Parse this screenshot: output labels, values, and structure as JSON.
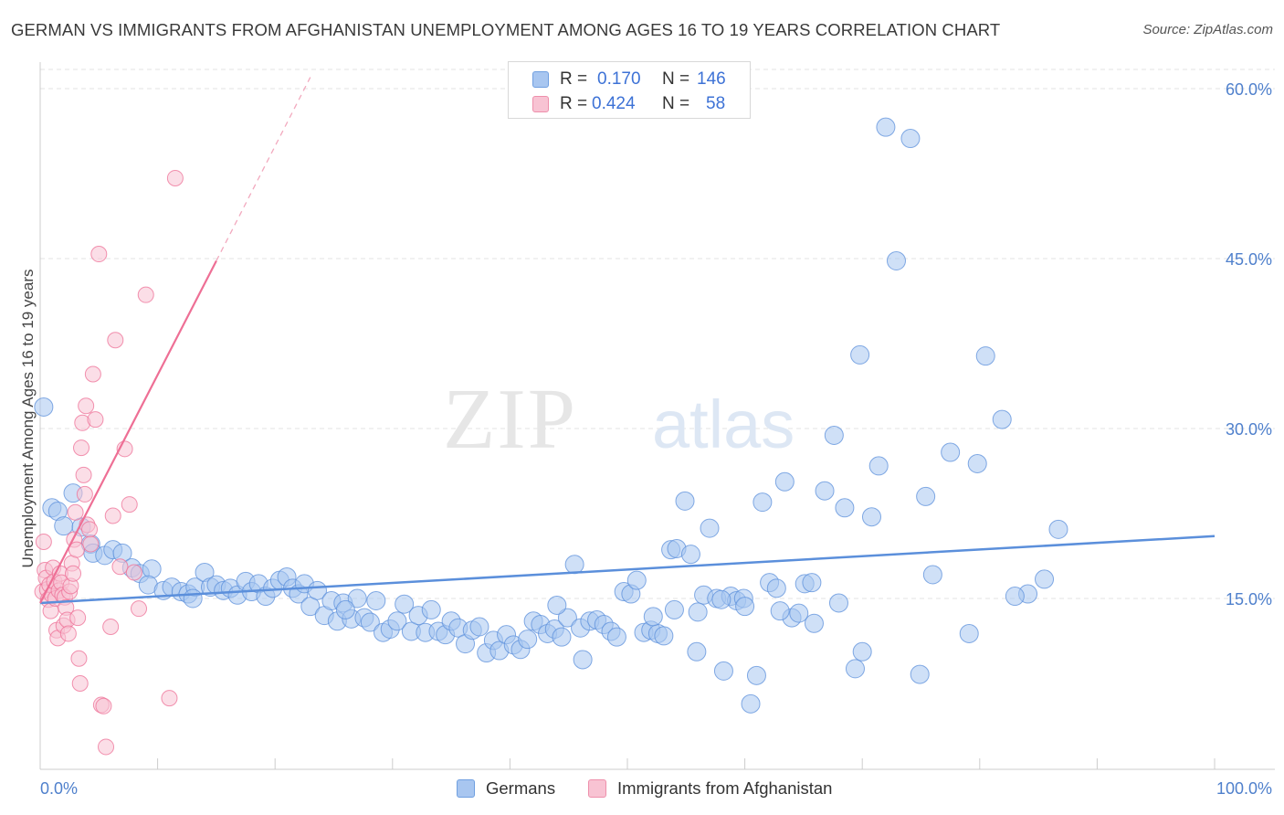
{
  "title": "GERMAN VS IMMIGRANTS FROM AFGHANISTAN UNEMPLOYMENT AMONG AGES 16 TO 19 YEARS CORRELATION CHART",
  "source": "Source: ZipAtlas.com",
  "watermark": {
    "zip": "ZIP",
    "atlas": "atlas"
  },
  "legend_top": {
    "rows": [
      {
        "r_label": "R =",
        "r_value": "0.170",
        "n_label": "N =",
        "n_value": "146",
        "color": "#a8c6f0",
        "border": "#6f9fe0"
      },
      {
        "r_label": "R =",
        "r_value": "0.424",
        "n_label": "N =",
        "n_value": "58",
        "color": "#f8c3d3",
        "border": "#ee8fab"
      }
    ]
  },
  "legend_bottom": [
    {
      "label": "Germans",
      "color": "#a8c6f0",
      "border": "#6f9fe0"
    },
    {
      "label": "Immigrants from Afghanistan",
      "color": "#f8c3d3",
      "border": "#ee8fab"
    }
  ],
  "chart_data": {
    "type": "scatter",
    "ylabel": "Unemployment Among Ages 16 to 19 years",
    "xlim": [
      0,
      100
    ],
    "ylim": [
      0,
      62
    ],
    "x_tick_labels": [
      "0.0%",
      "100.0%"
    ],
    "y_ticks": [
      15,
      30,
      45,
      60
    ],
    "y_tick_labels": [
      "15.0%",
      "30.0%",
      "45.0%",
      "60.0%"
    ],
    "grid": true,
    "series": [
      {
        "name": "Germans",
        "color": "#5b8fdb",
        "fill": "#a8c6f0",
        "trend": {
          "x0": 0,
          "y0": 14.6,
          "x1": 100,
          "y1": 20.5
        },
        "points": [
          [
            0.3,
            31.9
          ],
          [
            1.0,
            23.0
          ],
          [
            1.5,
            22.7
          ],
          [
            2.0,
            21.4
          ],
          [
            2.8,
            24.3
          ],
          [
            3.5,
            21.3
          ],
          [
            4.3,
            19.8
          ],
          [
            4.5,
            19.0
          ],
          [
            5.5,
            18.8
          ],
          [
            6.2,
            19.3
          ],
          [
            7.0,
            19.0
          ],
          [
            7.8,
            17.7
          ],
          [
            8.5,
            17.2
          ],
          [
            9.5,
            17.6
          ],
          [
            9.2,
            16.2
          ],
          [
            10.5,
            15.7
          ],
          [
            11.2,
            16.0
          ],
          [
            12.0,
            15.6
          ],
          [
            12.6,
            15.4
          ],
          [
            13.2,
            16.0
          ],
          [
            13.0,
            15.0
          ],
          [
            14.0,
            17.3
          ],
          [
            14.5,
            16.0
          ],
          [
            15.0,
            16.2
          ],
          [
            15.6,
            15.7
          ],
          [
            16.2,
            15.9
          ],
          [
            16.8,
            15.3
          ],
          [
            17.5,
            16.5
          ],
          [
            18.0,
            15.6
          ],
          [
            18.6,
            16.3
          ],
          [
            19.2,
            15.2
          ],
          [
            19.8,
            15.9
          ],
          [
            20.4,
            16.6
          ],
          [
            21.0,
            16.9
          ],
          [
            21.5,
            15.9
          ],
          [
            22.0,
            15.4
          ],
          [
            22.5,
            16.3
          ],
          [
            23.0,
            14.3
          ],
          [
            23.6,
            15.7
          ],
          [
            24.2,
            13.5
          ],
          [
            24.8,
            14.8
          ],
          [
            25.3,
            13.0
          ],
          [
            25.8,
            14.6
          ],
          [
            26.5,
            13.2
          ],
          [
            27.0,
            15.0
          ],
          [
            27.6,
            13.3
          ],
          [
            28.1,
            12.9
          ],
          [
            28.6,
            14.8
          ],
          [
            29.2,
            12.0
          ],
          [
            29.8,
            12.3
          ],
          [
            30.4,
            13.0
          ],
          [
            31.0,
            14.5
          ],
          [
            31.6,
            12.1
          ],
          [
            32.2,
            13.5
          ],
          [
            32.8,
            12.0
          ],
          [
            33.3,
            14.0
          ],
          [
            33.9,
            12.1
          ],
          [
            34.5,
            11.8
          ],
          [
            35.0,
            13.0
          ],
          [
            35.6,
            12.4
          ],
          [
            36.2,
            11.0
          ],
          [
            36.8,
            12.2
          ],
          [
            37.4,
            12.5
          ],
          [
            38.0,
            10.2
          ],
          [
            38.6,
            11.3
          ],
          [
            39.1,
            10.4
          ],
          [
            39.7,
            11.8
          ],
          [
            40.3,
            10.9
          ],
          [
            40.9,
            10.5
          ],
          [
            41.5,
            11.4
          ],
          [
            42.0,
            13.0
          ],
          [
            42.6,
            12.7
          ],
          [
            43.2,
            11.9
          ],
          [
            43.8,
            12.3
          ],
          [
            44.4,
            11.6
          ],
          [
            44.9,
            13.3
          ],
          [
            45.5,
            18.0
          ],
          [
            46.0,
            12.4
          ],
          [
            46.2,
            9.6
          ],
          [
            46.8,
            13.0
          ],
          [
            47.4,
            13.1
          ],
          [
            48.0,
            12.7
          ],
          [
            48.6,
            12.1
          ],
          [
            49.1,
            11.6
          ],
          [
            49.7,
            15.6
          ],
          [
            50.3,
            15.4
          ],
          [
            50.8,
            16.6
          ],
          [
            51.4,
            12.0
          ],
          [
            52.0,
            12.2
          ],
          [
            52.6,
            11.9
          ],
          [
            53.1,
            11.7
          ],
          [
            53.7,
            19.3
          ],
          [
            54.2,
            19.4
          ],
          [
            54.9,
            23.6
          ],
          [
            55.4,
            18.9
          ],
          [
            55.9,
            10.3
          ],
          [
            56.5,
            15.3
          ],
          [
            57.0,
            21.2
          ],
          [
            57.6,
            15.0
          ],
          [
            58.2,
            8.6
          ],
          [
            58.8,
            15.2
          ],
          [
            59.3,
            14.8
          ],
          [
            59.9,
            15.0
          ],
          [
            60.5,
            5.7
          ],
          [
            61.0,
            8.2
          ],
          [
            61.5,
            23.5
          ],
          [
            62.1,
            16.4
          ],
          [
            62.7,
            15.9
          ],
          [
            63.4,
            25.3
          ],
          [
            64.0,
            13.3
          ],
          [
            64.6,
            13.7
          ],
          [
            65.1,
            16.3
          ],
          [
            65.7,
            16.4
          ],
          [
            66.8,
            24.5
          ],
          [
            67.6,
            29.4
          ],
          [
            68.5,
            23.0
          ],
          [
            69.4,
            8.8
          ],
          [
            70.0,
            10.3
          ],
          [
            70.8,
            22.2
          ],
          [
            71.4,
            26.7
          ],
          [
            72.0,
            56.6
          ],
          [
            72.9,
            44.8
          ],
          [
            74.1,
            55.6
          ],
          [
            74.9,
            8.3
          ],
          [
            75.4,
            24.0
          ],
          [
            76.0,
            17.1
          ],
          [
            77.5,
            27.9
          ],
          [
            79.1,
            11.9
          ],
          [
            79.8,
            26.9
          ],
          [
            80.5,
            36.4
          ],
          [
            81.9,
            30.8
          ],
          [
            84.1,
            15.4
          ],
          [
            85.5,
            16.7
          ],
          [
            69.8,
            36.5
          ],
          [
            83.0,
            15.2
          ],
          [
            68.0,
            14.6
          ],
          [
            65.9,
            12.8
          ],
          [
            86.7,
            21.1
          ],
          [
            63.0,
            13.9
          ],
          [
            60.0,
            14.3
          ],
          [
            58.0,
            14.9
          ],
          [
            56.0,
            13.8
          ],
          [
            54.0,
            14.0
          ],
          [
            52.2,
            13.4
          ],
          [
            44.0,
            14.4
          ],
          [
            26.0,
            14.0
          ]
        ]
      },
      {
        "name": "Immigrants from Afghanistan",
        "color": "#ee6f95",
        "fill": "#f8c3d3",
        "trend": {
          "x0": 0,
          "y0": 14.6,
          "x1": 15,
          "y1": 44.8
        },
        "trend_dashed": {
          "x0": 15,
          "y0": 44.8,
          "x1": 23,
          "y1": 61
        },
        "points": [
          [
            0.2,
            15.6
          ],
          [
            0.3,
            20.0
          ],
          [
            0.4,
            17.5
          ],
          [
            0.5,
            16.8
          ],
          [
            0.6,
            15.8
          ],
          [
            0.7,
            14.9
          ],
          [
            0.8,
            16.2
          ],
          [
            0.9,
            13.9
          ],
          [
            1.0,
            15.3
          ],
          [
            1.1,
            17.7
          ],
          [
            1.2,
            16.5
          ],
          [
            1.3,
            15.0
          ],
          [
            1.4,
            12.2
          ],
          [
            1.5,
            11.5
          ],
          [
            1.6,
            15.7
          ],
          [
            1.7,
            17.2
          ],
          [
            1.8,
            16.4
          ],
          [
            1.9,
            15.3
          ],
          [
            2.0,
            12.6
          ],
          [
            2.1,
            15.1
          ],
          [
            2.2,
            14.2
          ],
          [
            2.3,
            13.1
          ],
          [
            2.4,
            11.9
          ],
          [
            2.5,
            15.6
          ],
          [
            2.6,
            16.1
          ],
          [
            2.7,
            18.1
          ],
          [
            2.8,
            17.2
          ],
          [
            2.9,
            20.2
          ],
          [
            3.0,
            22.6
          ],
          [
            3.1,
            19.3
          ],
          [
            3.2,
            13.3
          ],
          [
            3.3,
            9.7
          ],
          [
            3.4,
            7.5
          ],
          [
            3.5,
            28.3
          ],
          [
            3.6,
            30.5
          ],
          [
            3.7,
            25.9
          ],
          [
            3.8,
            24.2
          ],
          [
            3.9,
            32.0
          ],
          [
            4.0,
            21.5
          ],
          [
            4.2,
            21.1
          ],
          [
            4.3,
            19.8
          ],
          [
            4.5,
            34.8
          ],
          [
            4.7,
            30.8
          ],
          [
            5.0,
            45.4
          ],
          [
            5.2,
            5.6
          ],
          [
            5.4,
            5.5
          ],
          [
            5.6,
            1.9
          ],
          [
            6.0,
            12.5
          ],
          [
            6.2,
            22.3
          ],
          [
            6.4,
            37.8
          ],
          [
            6.8,
            17.8
          ],
          [
            7.2,
            28.2
          ],
          [
            7.6,
            23.3
          ],
          [
            8.0,
            17.3
          ],
          [
            8.4,
            14.1
          ],
          [
            9.0,
            41.8
          ],
          [
            11.0,
            6.2
          ],
          [
            11.5,
            52.1
          ]
        ]
      }
    ]
  }
}
